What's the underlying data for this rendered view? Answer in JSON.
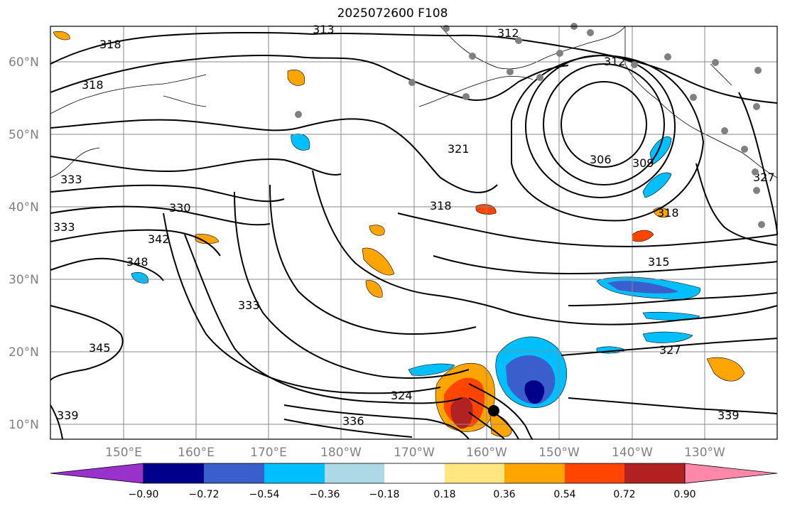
{
  "title": "2025072600 F108",
  "lat_labels": [
    "60°N",
    "50°N",
    "40°N",
    "30°N",
    "20°N",
    "10°N"
  ],
  "lon_labels": [
    "150°E",
    "160°E",
    "170°E",
    "180°W",
    "170°W",
    "160°W",
    "150°W",
    "140°W",
    "130°W"
  ],
  "contour_labels": [
    "318",
    "313",
    "312",
    "318",
    "312",
    "309",
    "306",
    "321",
    "318",
    "333",
    "330",
    "342",
    "348",
    "333",
    "345",
    "324",
    "336",
    "339",
    "339",
    "318",
    "315",
    "327",
    "327",
    "333"
  ],
  "colorbar": {
    "ticks": [
      "−0.90",
      "−0.72",
      "−0.54",
      "−0.36",
      "−0.18",
      "0.18",
      "0.36",
      "0.54",
      "0.72",
      "0.90"
    ],
    "colors": [
      "#9932cc",
      "#00008b",
      "#3a5fcd",
      "#00bfff",
      "#add8e6",
      "#ffffff",
      "#ffe680",
      "#ffa500",
      "#ff4500",
      "#b22222",
      "#ff88aa"
    ]
  },
  "markers": [
    {
      "name": "black-dot",
      "color": "#000000"
    },
    {
      "name": "navy-dot",
      "color": "#00008b"
    }
  ]
}
